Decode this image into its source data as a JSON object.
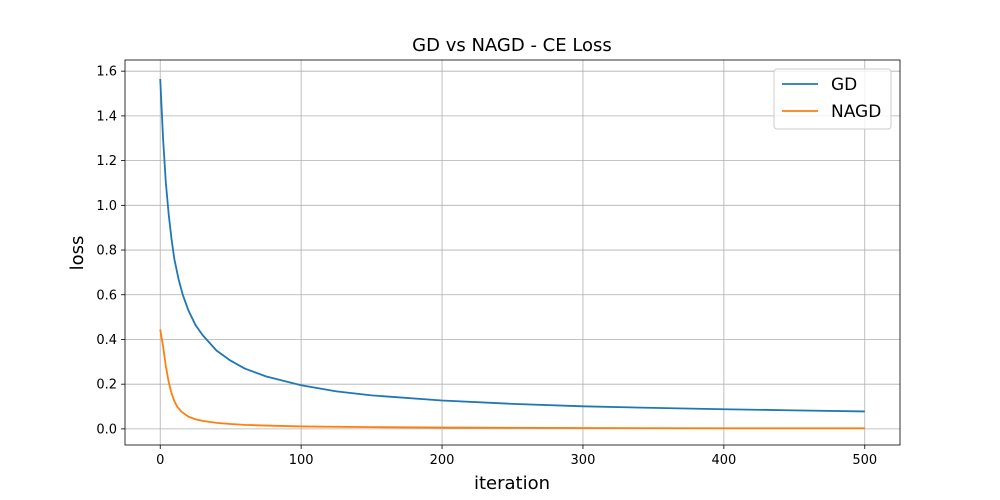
{
  "chart_data": {
    "type": "line",
    "title": "GD vs NAGD - CE Loss",
    "xlabel": "iteration",
    "ylabel": "loss",
    "xlim": [
      -25,
      525
    ],
    "ylim": [
      -0.072,
      1.65
    ],
    "xticks": [
      0,
      100,
      200,
      300,
      400,
      500
    ],
    "yticks": [
      0.0,
      0.2,
      0.4,
      0.6,
      0.8,
      1.0,
      1.2,
      1.4,
      1.6
    ],
    "xtick_labels": [
      "0",
      "100",
      "200",
      "300",
      "400",
      "500"
    ],
    "ytick_labels": [
      "0.0",
      "0.2",
      "0.4",
      "0.6",
      "0.8",
      "1.0",
      "1.2",
      "1.4",
      "1.6"
    ],
    "grid": true,
    "legend_position": "top-right",
    "series": [
      {
        "name": "GD",
        "color": "#1f77b4",
        "x": [
          0,
          2,
          4,
          6,
          8,
          10,
          13,
          16,
          20,
          25,
          30,
          40,
          50,
          60,
          75,
          100,
          125,
          150,
          200,
          250,
          300,
          350,
          400,
          450,
          500
        ],
        "y": [
          1.565,
          1.3,
          1.1,
          0.96,
          0.85,
          0.76,
          0.67,
          0.6,
          0.53,
          0.465,
          0.42,
          0.35,
          0.305,
          0.27,
          0.235,
          0.195,
          0.168,
          0.15,
          0.127,
          0.112,
          0.101,
          0.094,
          0.088,
          0.083,
          0.078
        ]
      },
      {
        "name": "NAGD",
        "color": "#ff7f0e",
        "x": [
          0,
          2,
          4,
          6,
          8,
          10,
          12,
          15,
          20,
          25,
          30,
          40,
          50,
          60,
          75,
          100,
          150,
          200,
          300,
          400,
          500
        ],
        "y": [
          0.445,
          0.37,
          0.28,
          0.21,
          0.16,
          0.125,
          0.1,
          0.077,
          0.055,
          0.043,
          0.036,
          0.027,
          0.022,
          0.018,
          0.015,
          0.011,
          0.008,
          0.006,
          0.004,
          0.003,
          0.003
        ]
      }
    ]
  }
}
